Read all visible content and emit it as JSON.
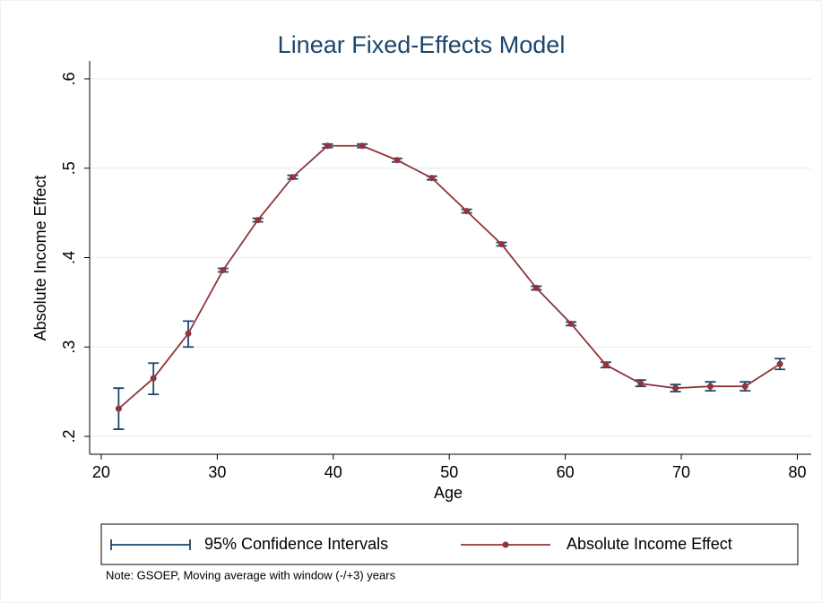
{
  "chart_data": {
    "type": "line",
    "title": "Linear Fixed-Effects Model",
    "xlabel": "Age",
    "ylabel": "Absolute Income Effect",
    "note": "Note: GSOEP, Moving average with window (-/+3) years",
    "x": [
      21.5,
      24.5,
      27.5,
      30.5,
      33.5,
      36.5,
      39.5,
      42.5,
      45.5,
      48.5,
      51.5,
      54.5,
      57.5,
      60.5,
      63.5,
      66.5,
      69.5,
      72.5,
      75.5,
      78.5
    ],
    "series": [
      {
        "name": "95% Confidence Intervals",
        "color": "#1a476f",
        "lower": [
          0.208,
          0.247,
          0.3,
          0.384,
          0.44,
          0.488,
          0.523,
          0.523,
          0.507,
          0.487,
          0.45,
          0.413,
          0.364,
          0.324,
          0.277,
          0.256,
          0.25,
          0.251,
          0.251,
          0.275
        ],
        "upper": [
          0.254,
          0.282,
          0.329,
          0.388,
          0.444,
          0.492,
          0.527,
          0.527,
          0.511,
          0.491,
          0.454,
          0.417,
          0.368,
          0.328,
          0.283,
          0.263,
          0.258,
          0.261,
          0.261,
          0.287
        ]
      },
      {
        "name": "Absolute Income Effect",
        "color": "#90353b",
        "values": [
          0.231,
          0.265,
          0.315,
          0.386,
          0.442,
          0.49,
          0.525,
          0.525,
          0.509,
          0.489,
          0.452,
          0.415,
          0.366,
          0.326,
          0.28,
          0.259,
          0.254,
          0.256,
          0.256,
          0.281
        ]
      }
    ],
    "xlim": [
      19,
      81.2
    ],
    "xticks": [
      20,
      30,
      40,
      50,
      60,
      70,
      80
    ],
    "ylim": [
      0.18,
      0.62
    ],
    "yticks": [
      {
        "value": 0.2,
        "label": ".2"
      },
      {
        "value": 0.3,
        "label": ".3"
      },
      {
        "value": 0.4,
        "label": ".4"
      },
      {
        "value": 0.5,
        "label": ".5"
      },
      {
        "value": 0.6,
        "label": ".6"
      }
    ],
    "grid": true,
    "legend": "bottom"
  }
}
